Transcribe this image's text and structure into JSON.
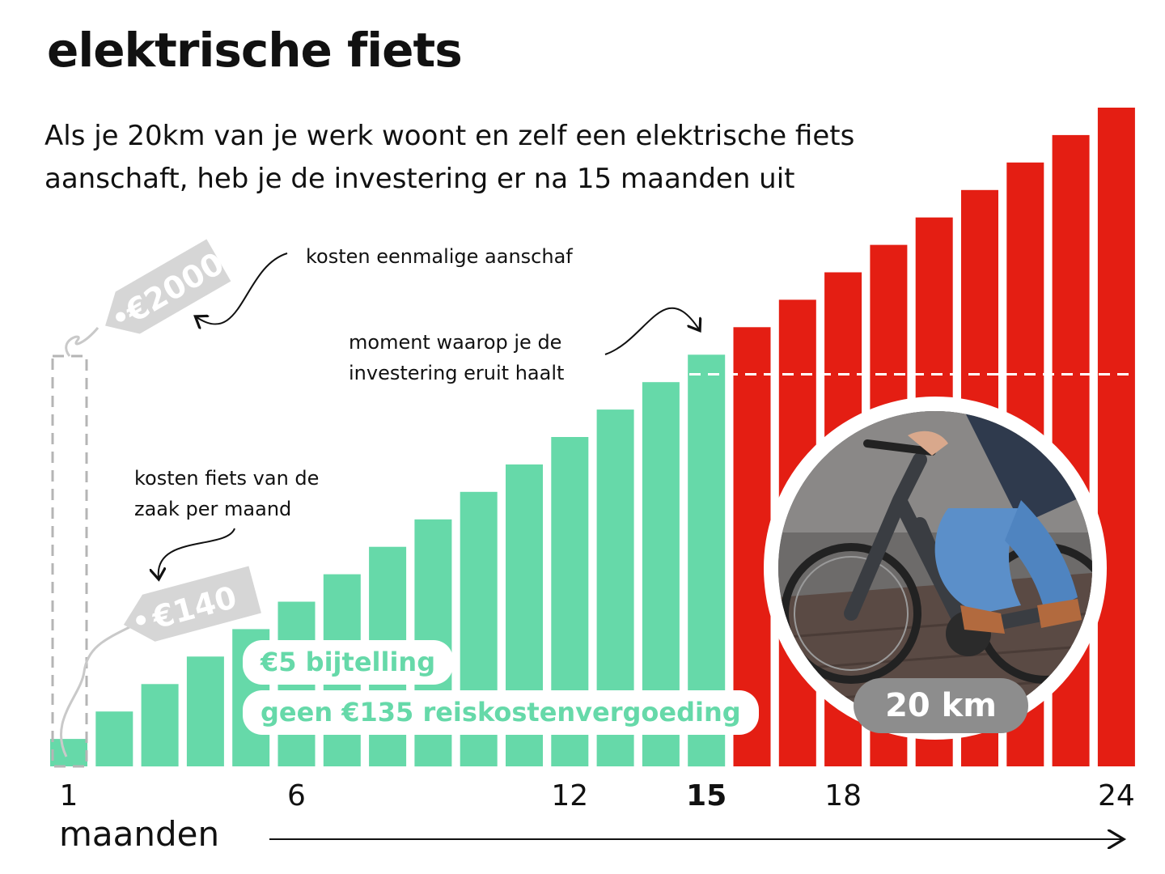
{
  "title": "elektrische fiets",
  "subtitle": "Als je 20km van je werk woont en zelf een elektrische fiets aanschaft, heb je de investering er na 15 maanden uit",
  "annotations": {
    "purchase_cost": "kosten eenmalige aanschaf",
    "breakeven_line1": "moment waarop je de",
    "breakeven_line2": "investering eruit haalt",
    "lease_line1": "kosten fiets van de",
    "lease_line2": "zaak per maand"
  },
  "tags": {
    "purchase": "€2000",
    "lease": "€140"
  },
  "pills": {
    "bijtelling": "€5 bijtelling",
    "vergoeding": "geen €135 reiskostenvergoeding"
  },
  "badge": "20 km",
  "colors": {
    "lease_bar": "#66d9a9",
    "beyond_bar": "#e41e13",
    "tag_gray": "#d6d6d6",
    "badge_gray": "#8d8d8d"
  },
  "chart_data": {
    "type": "bar",
    "x": [
      1,
      2,
      3,
      4,
      5,
      6,
      7,
      8,
      9,
      10,
      11,
      12,
      13,
      14,
      15,
      16,
      17,
      18,
      19,
      20,
      21,
      22,
      23,
      24
    ],
    "values": [
      140,
      280,
      420,
      560,
      700,
      840,
      980,
      1120,
      1260,
      1400,
      1540,
      1680,
      1820,
      1960,
      2100,
      2240,
      2380,
      2520,
      2660,
      2800,
      2940,
      3080,
      3220,
      3360
    ],
    "series": [
      {
        "name": "kosten fiets van de zaak per maand",
        "months": "1-15",
        "color": "#66d9a9"
      },
      {
        "name": "",
        "months": "16-24",
        "color": "#e41e13"
      }
    ],
    "purchase_cost": 2000,
    "breakeven_month": 15,
    "xlabel": "maanden",
    "xticks": [
      1,
      6,
      12,
      15,
      18,
      24
    ],
    "bold_tick": 15,
    "ylim": [
      0,
      3360
    ]
  }
}
